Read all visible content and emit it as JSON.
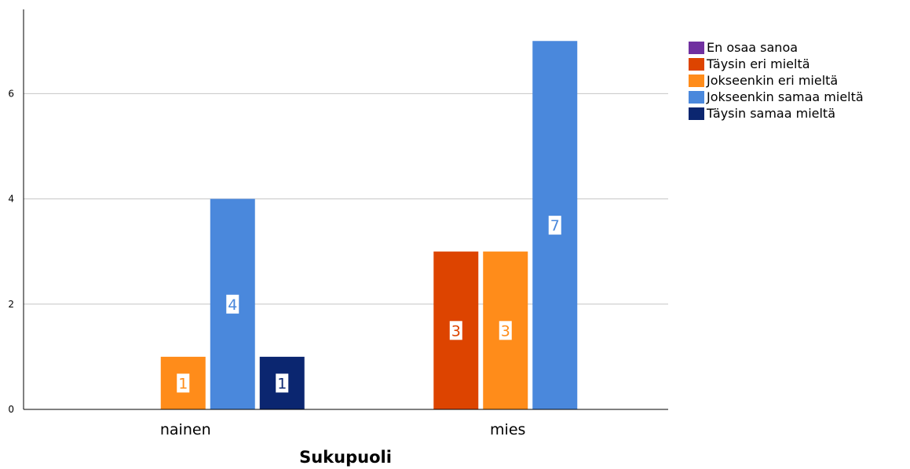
{
  "chart_data": {
    "type": "bar",
    "title": "",
    "xlabel": "Sukupuoli",
    "ylabel": "",
    "categories": [
      "nainen",
      "mies"
    ],
    "ylim": [
      0,
      7.6
    ],
    "yticks": [
      0,
      2,
      4,
      6
    ],
    "grid": true,
    "legend_position": "right",
    "series": [
      {
        "name": "En osaa sanoa",
        "color": "#7030a0",
        "values": [
          0,
          0
        ]
      },
      {
        "name": "Täysin eri mieltä",
        "color": "#dd4400",
        "values": [
          0,
          3
        ]
      },
      {
        "name": "Jokseenkin eri mieltä",
        "color": "#ff8c1a",
        "values": [
          1,
          3
        ]
      },
      {
        "name": "Jokseenkin samaa mieltä",
        "color": "#4a88dc",
        "values": [
          4,
          7
        ]
      },
      {
        "name": "Täysin samaa mieltä",
        "color": "#0b2670",
        "values": [
          1,
          0
        ]
      }
    ]
  }
}
